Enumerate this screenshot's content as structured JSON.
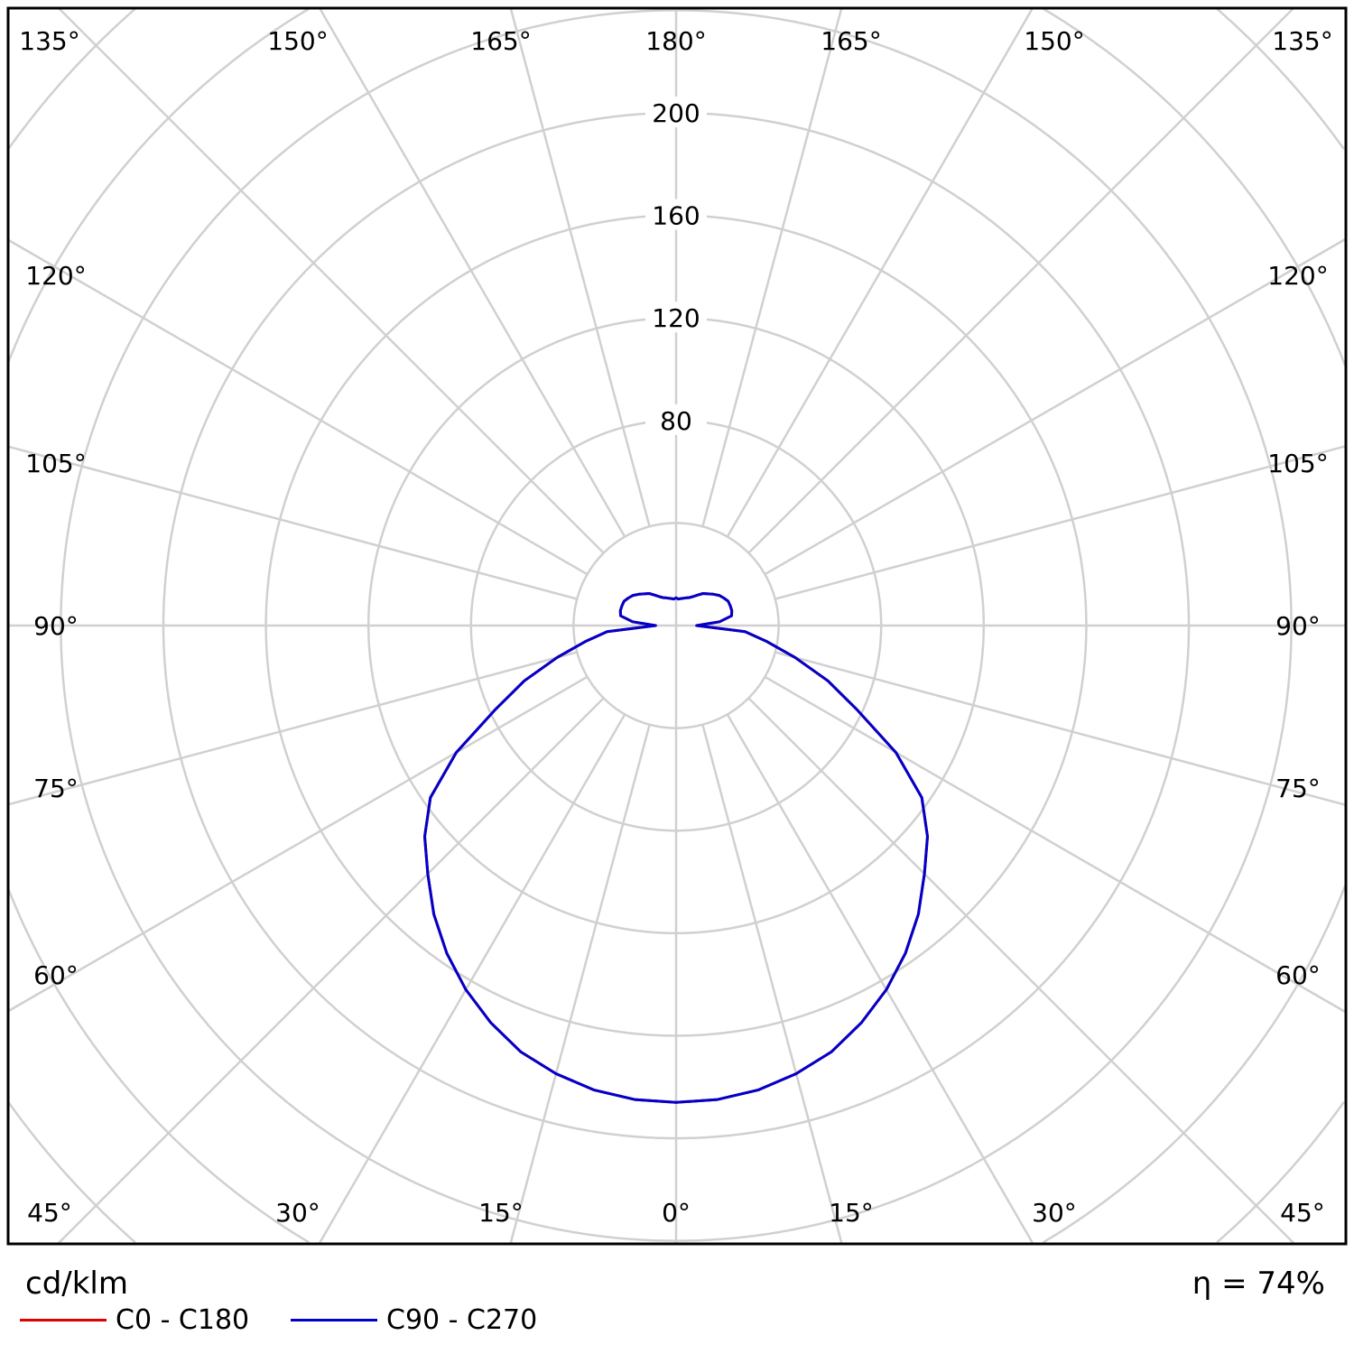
{
  "chart_data": {
    "type": "polar",
    "unit": "cd/klm",
    "efficiency": "η = 74%",
    "radial_ticks": [
      80,
      120,
      160,
      200
    ],
    "ring_step": 40,
    "angle_labels": {
      "top": [
        "135°",
        "150°",
        "165°",
        "180°",
        "165°",
        "150°",
        "135°"
      ],
      "left": [
        "120°",
        "105°",
        "90°",
        "75°",
        "60°"
      ],
      "right": [
        "120°",
        "105°",
        "90°",
        "75°",
        "60°"
      ],
      "bottom": [
        "45°",
        "30°",
        "15°",
        "0°",
        "15°",
        "30°",
        "45°"
      ]
    },
    "grid": true,
    "gamma": [
      0,
      5,
      10,
      15,
      20,
      25,
      30,
      35,
      40,
      45,
      50,
      55,
      60,
      65,
      70,
      75,
      80,
      85,
      90,
      95,
      100,
      105,
      110,
      115,
      120,
      125,
      130,
      135,
      140,
      145,
      150,
      155,
      160,
      165,
      170,
      175,
      180
    ],
    "series": [
      {
        "name": "C0 - C180",
        "color": "#e00000",
        "values": [
          186,
          185.6,
          184,
          181,
          177,
          171,
          164,
          156,
          147,
          137,
          128,
          117,
          99,
          78,
          63,
          48,
          36,
          27,
          8,
          17,
          22,
          22.5,
          22.5,
          22.4,
          21.5,
          20.5,
          19,
          17.5,
          16.3,
          14.5,
          13,
          12,
          11.5,
          11,
          10.7,
          10.4,
          10.8
        ]
      },
      {
        "name": "C90 - C270",
        "color": "#0000cc",
        "values": [
          186,
          185.6,
          184,
          181,
          177,
          171,
          164,
          156,
          147,
          137,
          128,
          117,
          99,
          78,
          63,
          48,
          36,
          27,
          8,
          17,
          22,
          22.5,
          22.5,
          22.4,
          21.5,
          20.5,
          19,
          17.5,
          16.3,
          14.5,
          13,
          12,
          11.5,
          11,
          10.7,
          10.4,
          10.8
        ]
      }
    ]
  }
}
